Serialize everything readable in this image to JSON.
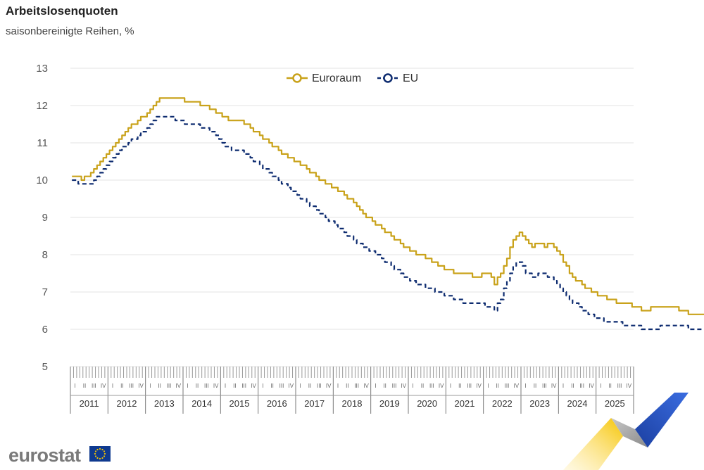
{
  "title": "Arbeitslosenquoten",
  "subtitle": "saisonbereinigte Reihen, %",
  "logo_text": "eurostat",
  "colors": {
    "euroraum": "#C9A21A",
    "eu": "#0E2C70",
    "grid": "#e3e3e3"
  },
  "chart_data": {
    "type": "line",
    "title": "Arbeitslosenquoten",
    "subtitle": "saisonbereinigte Reihen, %",
    "xlabel": "",
    "ylabel": "%",
    "ylim": [
      5,
      13
    ],
    "yticks": [
      "5",
      "6",
      "7",
      "8",
      "9",
      "10",
      "11",
      "12",
      "13"
    ],
    "years": [
      "2011",
      "2012",
      "2013",
      "2014",
      "2015",
      "2016",
      "2017",
      "2018",
      "2019",
      "2020",
      "2021",
      "2022",
      "2023",
      "2024",
      "2025"
    ],
    "quarters": [
      "I",
      "II",
      "III",
      "IV"
    ],
    "x_start": "2011-01",
    "x_end": "2025-09",
    "frequency": "monthly",
    "legend_position": "top-center",
    "series": [
      {
        "name": "Euroraum",
        "color": "#C9A21A",
        "style": "solid",
        "anchors": [
          [
            0,
            10.1
          ],
          [
            2,
            10.1
          ],
          [
            3,
            10.0
          ],
          [
            6,
            10.2
          ],
          [
            9,
            10.5
          ],
          [
            12,
            10.8
          ],
          [
            15,
            11.1
          ],
          [
            18,
            11.4
          ],
          [
            21,
            11.6
          ],
          [
            24,
            11.8
          ],
          [
            26,
            12.0
          ],
          [
            28,
            12.2
          ],
          [
            34,
            12.2
          ],
          [
            38,
            12.1
          ],
          [
            42,
            12.0
          ],
          [
            44,
            11.9
          ],
          [
            48,
            11.7
          ],
          [
            51,
            11.6
          ],
          [
            54,
            11.6
          ],
          [
            57,
            11.4
          ],
          [
            60,
            11.2
          ],
          [
            63,
            11.0
          ],
          [
            66,
            10.8
          ],
          [
            69,
            10.6
          ],
          [
            72,
            10.5
          ],
          [
            75,
            10.3
          ],
          [
            78,
            10.1
          ],
          [
            81,
            9.9
          ],
          [
            84,
            9.8
          ],
          [
            87,
            9.6
          ],
          [
            90,
            9.4
          ],
          [
            93,
            9.1
          ],
          [
            96,
            8.9
          ],
          [
            99,
            8.7
          ],
          [
            102,
            8.5
          ],
          [
            105,
            8.3
          ],
          [
            108,
            8.1
          ],
          [
            111,
            8.0
          ],
          [
            114,
            7.9
          ],
          [
            117,
            7.7
          ],
          [
            120,
            7.6
          ],
          [
            123,
            7.5
          ],
          [
            126,
            7.5
          ],
          [
            129,
            7.4
          ],
          [
            132,
            7.5
          ],
          [
            134,
            7.4
          ],
          [
            135,
            7.2
          ],
          [
            137,
            7.5
          ],
          [
            139,
            7.9
          ],
          [
            141,
            8.4
          ],
          [
            143,
            8.6
          ],
          [
            145,
            8.4
          ],
          [
            147,
            8.2
          ],
          [
            149,
            8.3
          ],
          [
            151,
            8.2
          ],
          [
            153,
            8.3
          ],
          [
            155,
            8.1
          ],
          [
            157,
            7.8
          ],
          [
            160,
            7.4
          ],
          [
            163,
            7.2
          ],
          [
            166,
            7.0
          ],
          [
            169,
            6.9
          ],
          [
            172,
            6.8
          ],
          [
            174,
            6.7
          ],
          [
            177,
            6.7
          ],
          [
            180,
            6.6
          ],
          [
            183,
            6.5
          ],
          [
            186,
            6.6
          ],
          [
            189,
            6.6
          ],
          [
            192,
            6.6
          ],
          [
            195,
            6.5
          ],
          [
            198,
            6.4
          ],
          [
            201,
            6.4
          ],
          [
            204,
            6.3
          ],
          [
            206,
            6.2
          ],
          [
            208,
            6.3
          ],
          [
            210,
            6.3
          ],
          [
            212,
            6.4
          ],
          [
            214,
            6.3
          ],
          [
            216,
            6.4
          ],
          [
            219,
            6.3
          ],
          [
            224,
            6.3
          ]
        ]
      },
      {
        "name": "EU",
        "color": "#0E2C70",
        "style": "dashed",
        "anchors": [
          [
            0,
            10.0
          ],
          [
            2,
            9.9
          ],
          [
            6,
            9.9
          ],
          [
            9,
            10.2
          ],
          [
            12,
            10.5
          ],
          [
            15,
            10.8
          ],
          [
            18,
            11.0
          ],
          [
            21,
            11.2
          ],
          [
            24,
            11.4
          ],
          [
            27,
            11.7
          ],
          [
            31,
            11.7
          ],
          [
            34,
            11.6
          ],
          [
            36,
            11.5
          ],
          [
            39,
            11.5
          ],
          [
            42,
            11.4
          ],
          [
            45,
            11.3
          ],
          [
            48,
            11.0
          ],
          [
            51,
            10.8
          ],
          [
            54,
            10.8
          ],
          [
            57,
            10.6
          ],
          [
            60,
            10.4
          ],
          [
            63,
            10.2
          ],
          [
            66,
            10.0
          ],
          [
            69,
            9.8
          ],
          [
            72,
            9.6
          ],
          [
            75,
            9.4
          ],
          [
            78,
            9.2
          ],
          [
            81,
            9.0
          ],
          [
            84,
            8.8
          ],
          [
            87,
            8.6
          ],
          [
            90,
            8.4
          ],
          [
            93,
            8.2
          ],
          [
            96,
            8.1
          ],
          [
            99,
            7.9
          ],
          [
            102,
            7.7
          ],
          [
            105,
            7.5
          ],
          [
            108,
            7.3
          ],
          [
            111,
            7.2
          ],
          [
            114,
            7.1
          ],
          [
            117,
            7.0
          ],
          [
            120,
            6.9
          ],
          [
            123,
            6.8
          ],
          [
            126,
            6.7
          ],
          [
            129,
            6.7
          ],
          [
            133,
            6.6
          ],
          [
            135,
            6.5
          ],
          [
            137,
            6.8
          ],
          [
            139,
            7.3
          ],
          [
            141,
            7.7
          ],
          [
            143,
            7.8
          ],
          [
            145,
            7.5
          ],
          [
            147,
            7.4
          ],
          [
            150,
            7.5
          ],
          [
            153,
            7.4
          ],
          [
            156,
            7.1
          ],
          [
            159,
            6.8
          ],
          [
            162,
            6.6
          ],
          [
            165,
            6.4
          ],
          [
            168,
            6.3
          ],
          [
            171,
            6.2
          ],
          [
            174,
            6.2
          ],
          [
            177,
            6.1
          ],
          [
            180,
            6.1
          ],
          [
            183,
            6.0
          ],
          [
            186,
            6.0
          ],
          [
            189,
            6.1
          ],
          [
            192,
            6.1
          ],
          [
            195,
            6.1
          ],
          [
            198,
            6.0
          ],
          [
            201,
            6.0
          ],
          [
            204,
            5.9
          ],
          [
            207,
            5.8
          ],
          [
            209,
            5.9
          ],
          [
            211,
            6.0
          ],
          [
            213,
            5.9
          ],
          [
            215,
            6.0
          ],
          [
            217,
            5.9
          ],
          [
            219,
            6.0
          ],
          [
            221,
            5.9
          ],
          [
            224,
            6.0
          ]
        ]
      }
    ]
  }
}
